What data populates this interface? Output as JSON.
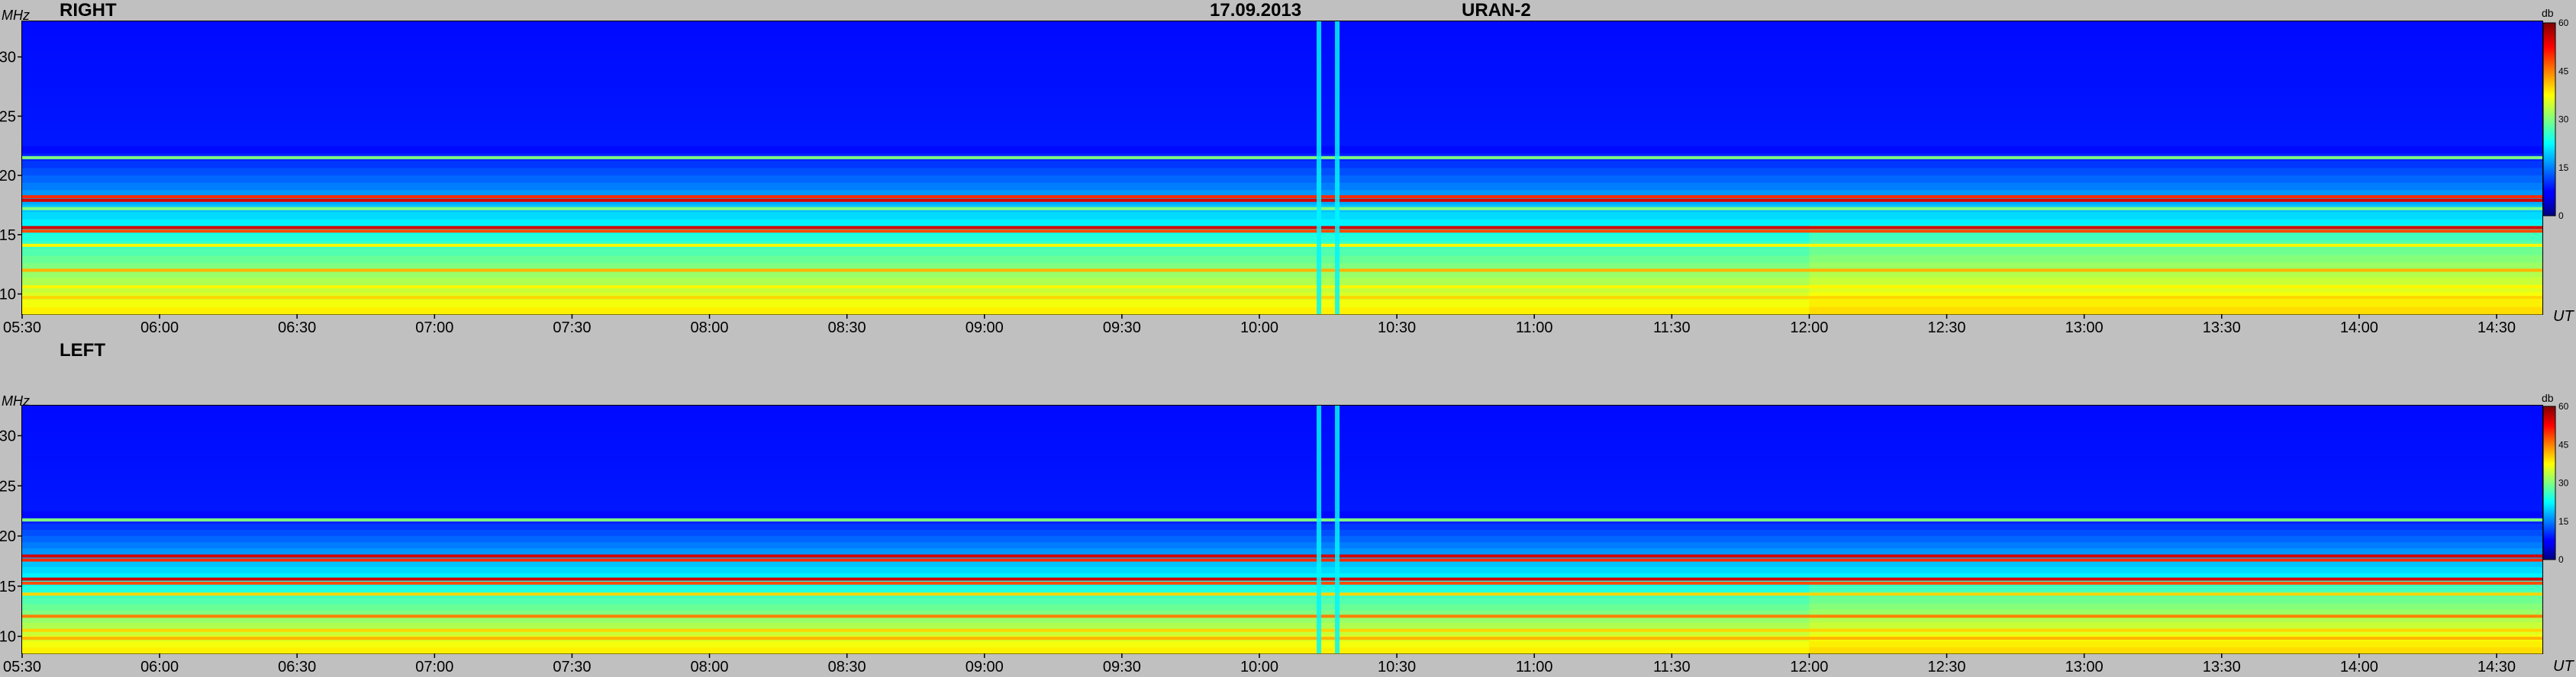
{
  "header": {
    "date": "17.09.2013",
    "instrument": "URAN-2"
  },
  "chart_data": [
    {
      "type": "heatmap",
      "panel_label": "RIGHT",
      "yunit": "MHz",
      "xunit": "UT",
      "x_ticks": [
        "05:30",
        "06:00",
        "06:30",
        "07:00",
        "07:30",
        "08:00",
        "08:30",
        "09:00",
        "09:30",
        "10:00",
        "10:30",
        "11:00",
        "11:30",
        "12:00",
        "12:30",
        "13:00",
        "13:30",
        "14:00",
        "14:30"
      ],
      "y_ticks": [
        10,
        15,
        20,
        25,
        30
      ],
      "xlim": [
        "05:30",
        "14:40"
      ],
      "ylim": [
        8.3,
        33
      ],
      "colorbar": {
        "unit": "db",
        "ticks": [
          0,
          15,
          30,
          45,
          60
        ],
        "range": [
          0,
          60
        ]
      },
      "features": {
        "background_db": 8,
        "narrowband_lines_mhz": [
          {
            "f": 21.5,
            "db": 30
          },
          {
            "f": 18.2,
            "db": 50
          },
          {
            "f": 17.9,
            "db": 55
          },
          {
            "f": 17.2,
            "db": 30
          },
          {
            "f": 15.6,
            "db": 55
          },
          {
            "f": 15.3,
            "db": 48
          },
          {
            "f": 14.1,
            "db": 38
          },
          {
            "f": 12.0,
            "db": 42
          },
          {
            "f": 10.6,
            "db": 38
          },
          {
            "f": 9.7,
            "db": 40
          }
        ],
        "vertical_interference_ut": [
          "10:13",
          "10:17"
        ],
        "intensification_after_ut": "12:00"
      }
    },
    {
      "type": "heatmap",
      "panel_label": "LEFT",
      "yunit": "MHz",
      "xunit": "UT",
      "x_ticks": [
        "05:30",
        "06:00",
        "06:30",
        "07:00",
        "07:30",
        "08:00",
        "08:30",
        "09:00",
        "09:30",
        "10:00",
        "10:30",
        "11:00",
        "11:30",
        "12:00",
        "12:30",
        "13:00",
        "13:30",
        "14:00",
        "14:30"
      ],
      "y_ticks": [
        10,
        15,
        20,
        25,
        30
      ],
      "xlim": [
        "05:30",
        "14:40"
      ],
      "ylim": [
        8.3,
        33
      ],
      "colorbar": {
        "unit": "db",
        "ticks": [
          0,
          15,
          30,
          45,
          60
        ],
        "range": [
          0,
          60
        ]
      },
      "features": {
        "background_db": 8,
        "narrowband_lines_mhz": [
          {
            "f": 21.6,
            "db": 30
          },
          {
            "f": 18.0,
            "db": 55
          },
          {
            "f": 17.6,
            "db": 50
          },
          {
            "f": 15.7,
            "db": 55
          },
          {
            "f": 15.3,
            "db": 48
          },
          {
            "f": 14.2,
            "db": 40
          },
          {
            "f": 12.0,
            "db": 45
          },
          {
            "f": 10.6,
            "db": 40
          },
          {
            "f": 9.8,
            "db": 42
          }
        ],
        "vertical_interference_ut": [
          "10:13",
          "10:17"
        ],
        "intensification_after_ut": "12:00"
      }
    }
  ]
}
